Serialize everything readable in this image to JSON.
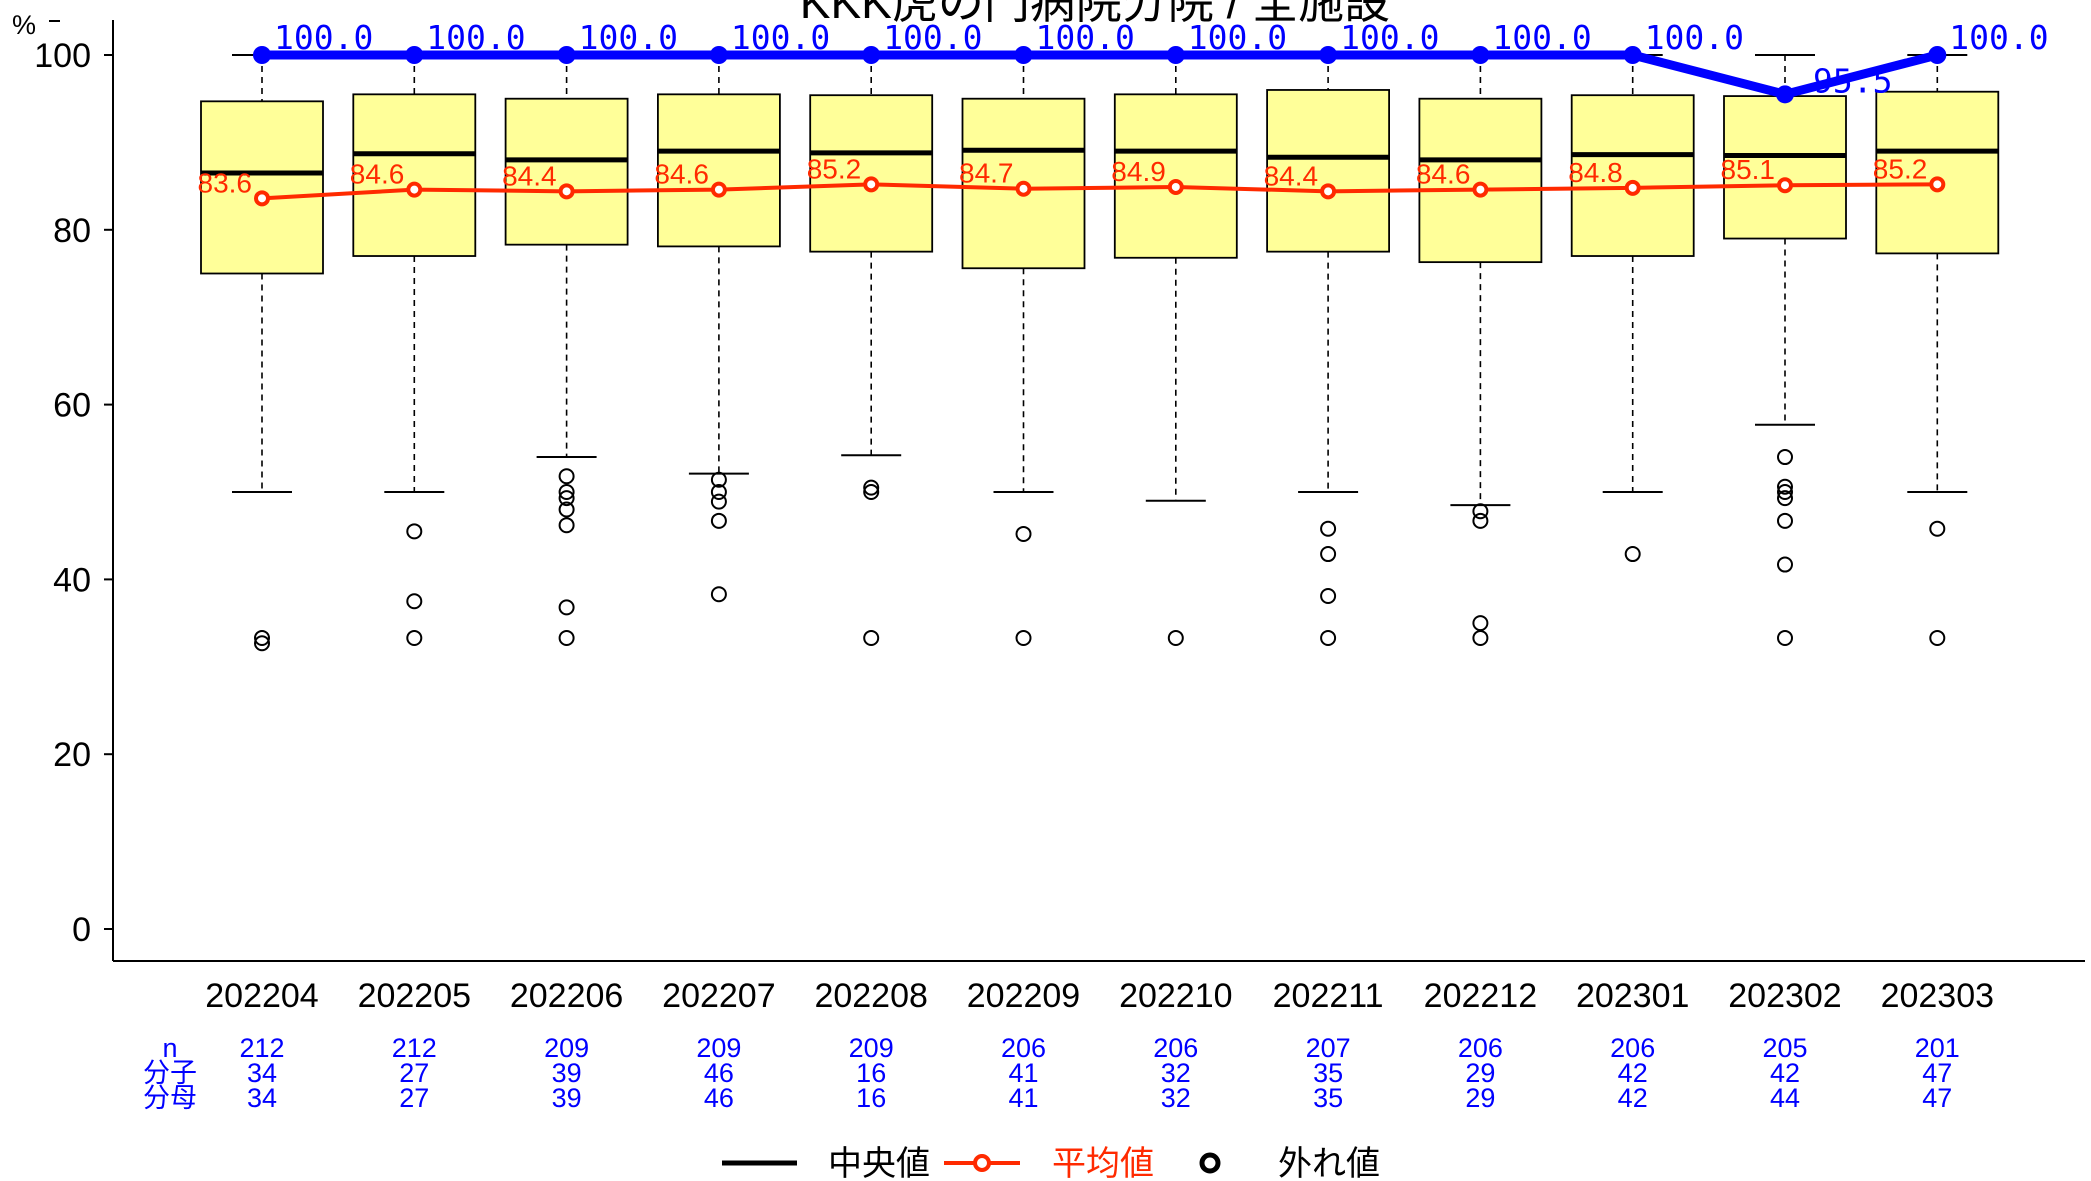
{
  "chart_data": {
    "type": "box",
    "title": "KKK虎の門病院分院 / 全施設",
    "ylabel": "%",
    "ylim": [
      0,
      100
    ],
    "yticks": [
      0,
      20,
      40,
      60,
      80,
      100
    ],
    "categories": [
      "202204",
      "202205",
      "202206",
      "202207",
      "202208",
      "202209",
      "202210",
      "202211",
      "202212",
      "202301",
      "202302",
      "202303"
    ],
    "boxes": [
      {
        "whisker_low": 50.0,
        "q1": 75.0,
        "median": 86.5,
        "q3": 94.7,
        "whisker_high": 100.0,
        "outliers": [
          33.3,
          32.7
        ]
      },
      {
        "whisker_low": 50.0,
        "q1": 77.0,
        "median": 88.7,
        "q3": 95.5,
        "whisker_high": 100.0,
        "outliers": [
          45.5,
          37.5,
          33.3
        ]
      },
      {
        "whisker_low": 54.0,
        "q1": 78.3,
        "median": 88.0,
        "q3": 95.0,
        "whisker_high": 100.0,
        "outliers": [
          51.8,
          50.0,
          49.3,
          48.0,
          46.2,
          36.8,
          33.3
        ]
      },
      {
        "whisker_low": 52.1,
        "q1": 78.1,
        "median": 89.0,
        "q3": 95.5,
        "whisker_high": 100.0,
        "outliers": [
          51.4,
          50.0,
          48.9,
          46.7,
          38.3
        ]
      },
      {
        "whisker_low": 54.2,
        "q1": 77.5,
        "median": 88.8,
        "q3": 95.4,
        "whisker_high": 100.0,
        "outliers": [
          50.5,
          50.0,
          33.3
        ]
      },
      {
        "whisker_low": 50.0,
        "q1": 75.6,
        "median": 89.1,
        "q3": 95.0,
        "whisker_high": 100.0,
        "outliers": [
          45.2,
          33.3
        ]
      },
      {
        "whisker_low": 49.0,
        "q1": 76.8,
        "median": 89.0,
        "q3": 95.5,
        "whisker_high": 100.0,
        "outliers": [
          33.3
        ]
      },
      {
        "whisker_low": 50.0,
        "q1": 77.5,
        "median": 88.3,
        "q3": 96.0,
        "whisker_high": 100.0,
        "outliers": [
          45.8,
          42.9,
          38.1,
          33.3
        ]
      },
      {
        "whisker_low": 48.5,
        "q1": 76.3,
        "median": 88.0,
        "q3": 95.0,
        "whisker_high": 100.0,
        "outliers": [
          47.8,
          46.7,
          35.0,
          33.3
        ]
      },
      {
        "whisker_low": 50.0,
        "q1": 77.0,
        "median": 88.6,
        "q3": 95.4,
        "whisker_high": 100.0,
        "outliers": [
          42.9
        ]
      },
      {
        "whisker_low": 57.7,
        "q1": 79.0,
        "median": 88.5,
        "q3": 95.3,
        "whisker_high": 100.0,
        "outliers": [
          54.0,
          50.6,
          50.0,
          49.3,
          46.7,
          41.7,
          33.3
        ]
      },
      {
        "whisker_low": 50.0,
        "q1": 77.3,
        "median": 89.0,
        "q3": 95.8,
        "whisker_high": 100.0,
        "outliers": [
          45.8,
          33.3
        ]
      }
    ],
    "series": [
      {
        "name": "平均値",
        "values": [
          83.6,
          84.6,
          84.4,
          84.6,
          85.2,
          84.7,
          84.9,
          84.4,
          84.6,
          84.8,
          85.1,
          85.2
        ],
        "labels": [
          "83.6",
          "84.6",
          "84.4",
          "84.6",
          "85.2",
          "84.7",
          "84.9",
          "84.4",
          "84.6",
          "84.8",
          "85.1",
          "85.2"
        ],
        "color": "#ff2a00"
      },
      {
        "values": [
          100.0,
          100.0,
          100.0,
          100.0,
          100.0,
          100.0,
          100.0,
          100.0,
          100.0,
          100.0,
          95.5,
          100.0
        ],
        "labels": [
          "100.0",
          "100.0",
          "100.0",
          "100.0",
          "100.0",
          "100.0",
          "100.0",
          "100.0",
          "100.0",
          "100.0",
          "95.5",
          "100.0"
        ],
        "color": "#0000ff"
      }
    ],
    "stats_labels": [
      "n",
      "分子",
      "分母"
    ],
    "n": [
      "212",
      "212",
      "209",
      "209",
      "209",
      "206",
      "206",
      "207",
      "206",
      "206",
      "205",
      "201"
    ],
    "numerator": [
      "34",
      "27",
      "39",
      "46",
      "16",
      "41",
      "32",
      "35",
      "29",
      "42",
      "42",
      "47"
    ],
    "denominator": [
      "34",
      "27",
      "39",
      "46",
      "16",
      "41",
      "32",
      "35",
      "29",
      "42",
      "44",
      "47"
    ],
    "legend": [
      {
        "label": "中央値",
        "color": "#000000",
        "marker": "line"
      },
      {
        "label": "平均値",
        "color": "#ff2a00",
        "marker": "line-circle"
      },
      {
        "label": "外れ値",
        "color": "#000000",
        "marker": "circle"
      }
    ],
    "colors": {
      "box_fill": "#ffff99",
      "mean": "#ff2a00",
      "max": "#0000ff",
      "axis": "#000000"
    },
    "grid": false
  }
}
